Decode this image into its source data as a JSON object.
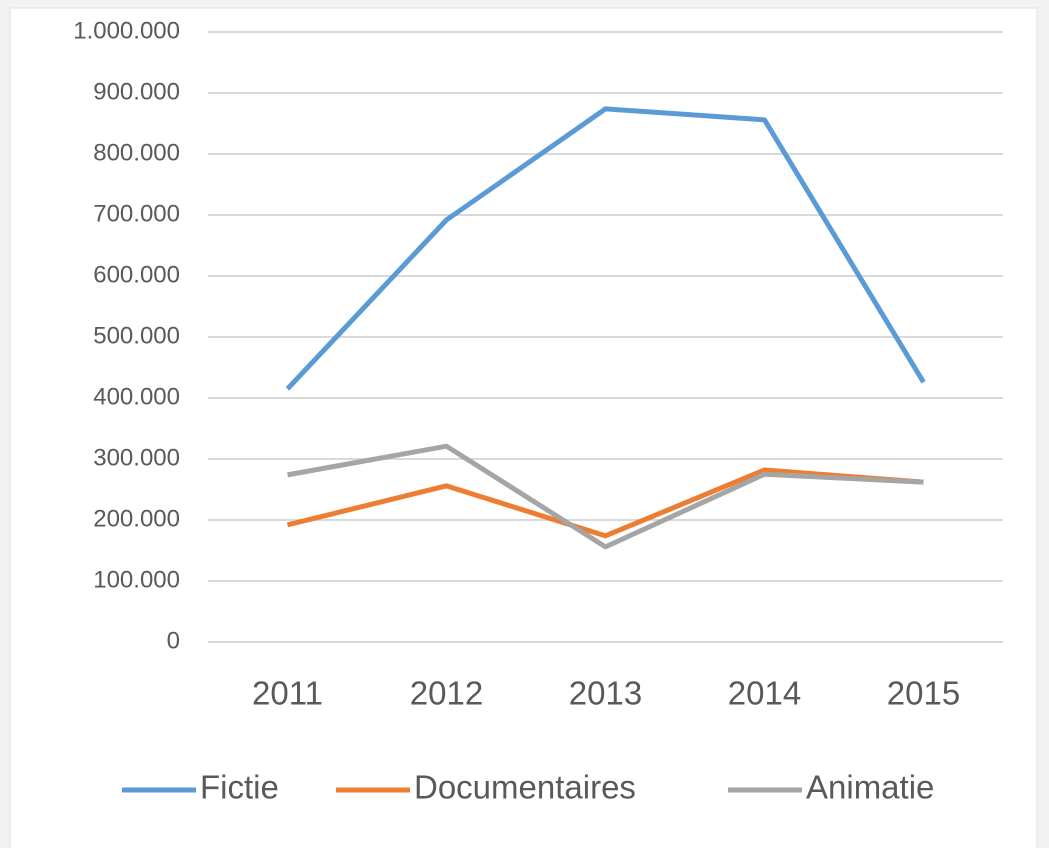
{
  "chart_data": {
    "type": "line",
    "categories": [
      "2011",
      "2012",
      "2013",
      "2014",
      "2015"
    ],
    "series": [
      {
        "name": "Fictie",
        "color": "#5b9bd5",
        "values": [
          415000,
          692000,
          874000,
          856000,
          426000
        ]
      },
      {
        "name": "Documentaires",
        "color": "#ed7d31",
        "values": [
          192000,
          256000,
          174000,
          282000,
          262000
        ]
      },
      {
        "name": "Animatie",
        "color": "#a5a5a5",
        "values": [
          274000,
          321000,
          156000,
          275000,
          262000
        ]
      }
    ],
    "ylim": [
      0,
      1000000
    ],
    "yticks": [
      0,
      {
        "value": 100000,
        "label": "100.000"
      },
      {
        "value": 200000,
        "label": "200.000"
      },
      {
        "value": 300000,
        "label": "300.000"
      },
      {
        "value": 400000,
        "label": "400.000"
      },
      {
        "value": 500000,
        "label": "500.000"
      },
      {
        "value": 600000,
        "label": "600.000"
      },
      {
        "value": 700000,
        "label": "700.000"
      },
      {
        "value": 800000,
        "label": "800.000"
      },
      {
        "value": 900000,
        "label": "900.000"
      },
      {
        "value": 1000000,
        "label": "1.000.000"
      }
    ],
    "grid": true,
    "legend": "bottom"
  }
}
